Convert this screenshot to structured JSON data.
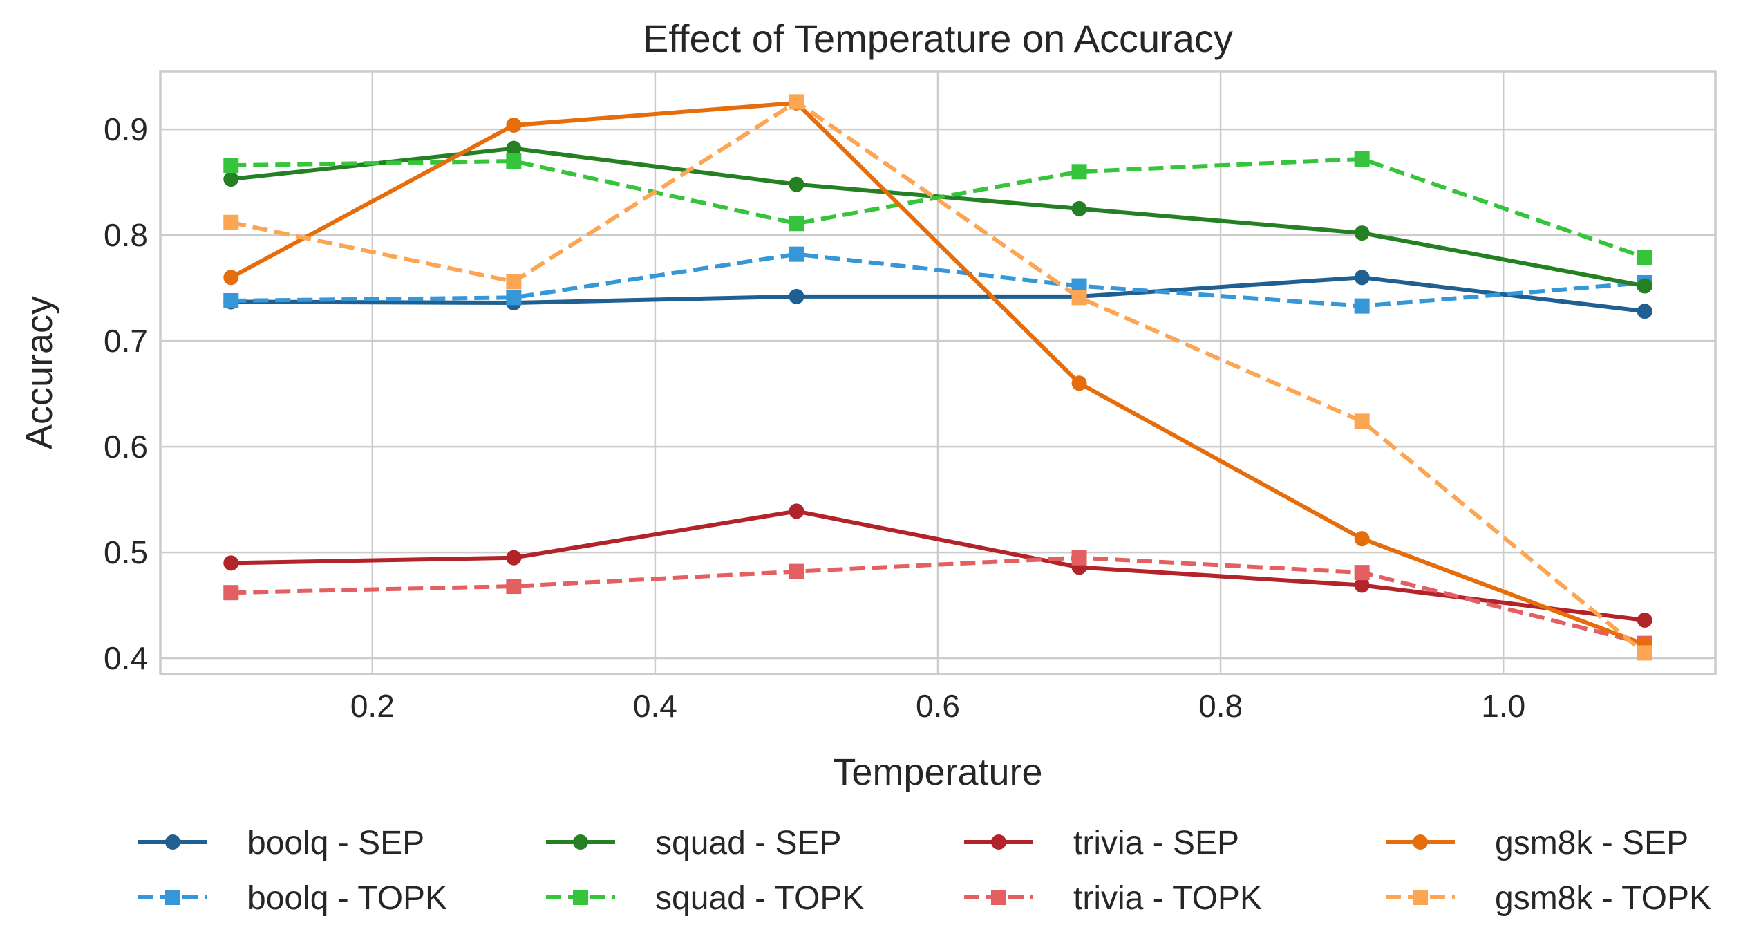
{
  "chart_data": {
    "type": "line",
    "title": "Effect of Temperature on Accuracy",
    "xlabel": "Temperature",
    "ylabel": "Accuracy",
    "xlim": [
      0.05,
      1.15
    ],
    "ylim": [
      0.385,
      0.955
    ],
    "xticks": [
      0.2,
      0.4,
      0.6,
      0.8,
      1.0
    ],
    "xtick_labels": [
      "0.2",
      "0.4",
      "0.6",
      "0.8",
      "1.0"
    ],
    "yticks": [
      0.4,
      0.5,
      0.6,
      0.7,
      0.8,
      0.9
    ],
    "ytick_labels": [
      "0.4",
      "0.5",
      "0.6",
      "0.7",
      "0.8",
      "0.9"
    ],
    "grid": true,
    "legend_position": "bottom",
    "x": [
      0.1,
      0.3,
      0.5,
      0.7,
      0.9,
      1.1
    ],
    "series": [
      {
        "name": "boolq - SEP",
        "color": "#1f5f91",
        "dash": "solid",
        "marker": "circle",
        "values": [
          0.737,
          0.736,
          0.742,
          0.742,
          0.76,
          0.728
        ]
      },
      {
        "name": "boolq - TOPK",
        "color": "#3596d8",
        "dash": "dashed",
        "marker": "square",
        "values": [
          0.738,
          0.741,
          0.782,
          0.752,
          0.733,
          0.755
        ]
      },
      {
        "name": "squad - SEP",
        "color": "#258024",
        "dash": "solid",
        "marker": "circle",
        "values": [
          0.853,
          0.882,
          0.848,
          0.825,
          0.802,
          0.752
        ]
      },
      {
        "name": "squad - TOPK",
        "color": "#35c43c",
        "dash": "dashed",
        "marker": "square",
        "values": [
          0.866,
          0.87,
          0.811,
          0.86,
          0.872,
          0.779
        ]
      },
      {
        "name": "trivia - SEP",
        "color": "#b3232a",
        "dash": "solid",
        "marker": "circle",
        "values": [
          0.49,
          0.495,
          0.539,
          0.486,
          0.469,
          0.436
        ]
      },
      {
        "name": "trivia - TOPK",
        "color": "#e35f62",
        "dash": "dashed",
        "marker": "square",
        "values": [
          0.462,
          0.468,
          0.482,
          0.495,
          0.481,
          0.414
        ]
      },
      {
        "name": "gsm8k - SEP",
        "color": "#e66d0c",
        "dash": "solid",
        "marker": "circle",
        "values": [
          0.76,
          0.904,
          0.925,
          0.66,
          0.513,
          0.413
        ]
      },
      {
        "name": "gsm8k - TOPK",
        "color": "#fca552",
        "dash": "dashed",
        "marker": "square",
        "values": [
          0.812,
          0.756,
          0.926,
          0.741,
          0.624,
          0.405
        ]
      }
    ]
  }
}
